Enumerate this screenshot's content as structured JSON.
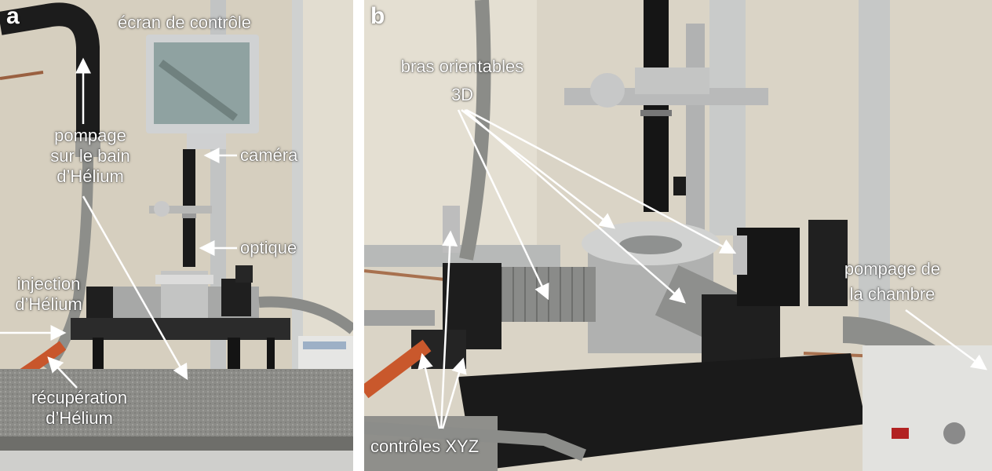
{
  "panel_a": {
    "letter": "a",
    "labels": {
      "ecran": "écran de contrôle",
      "pompage_line1": "pompage",
      "pompage_line2": "sur le bain",
      "pompage_line3": "d’Hélium",
      "camera": "caméra",
      "optique": "optique",
      "injection_line1": "injection",
      "injection_line2": "d’Hélium",
      "recuperation_line1": "récupération",
      "recuperation_line2": "d’Hélium"
    }
  },
  "panel_b": {
    "letter": "b",
    "labels": {
      "bras_line1": "bras orientables",
      "bras_line2": "3D",
      "pompage_line1": "pompage de",
      "pompage_line2": "la chambre",
      "controles": "contrôles XYZ"
    }
  },
  "colors": {
    "label_text": "#ffffff",
    "arrow": "#ffffff",
    "wall": "#d8d2c2",
    "granite": "#8e8e8a"
  }
}
